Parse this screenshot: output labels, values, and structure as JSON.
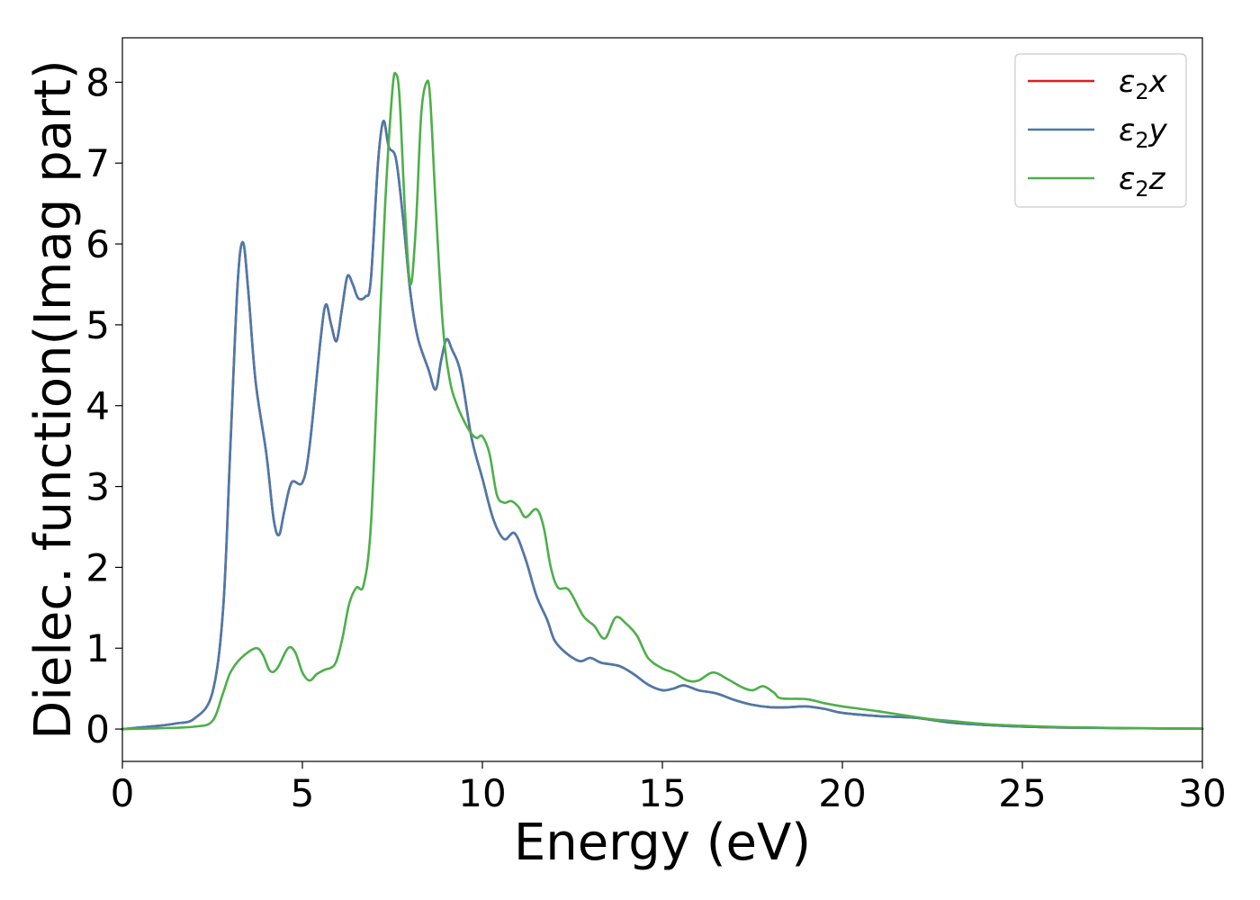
{
  "chart_data": {
    "type": "line",
    "xlabel": "Energy (eV)",
    "ylabel": "Dielec. function(Imag part)",
    "xlim": [
      0,
      30
    ],
    "ylim": [
      -0.4,
      8.55
    ],
    "xticks": [
      0,
      5,
      10,
      15,
      20,
      25,
      30
    ],
    "yticks": [
      0,
      1,
      2,
      3,
      4,
      5,
      6,
      7,
      8
    ],
    "grid": false,
    "legend_position": "top-right",
    "series": [
      {
        "name": "ε2x",
        "legend": {
          "base": "ε",
          "sub": "2",
          "suffix": "x"
        },
        "color": "#e41a1c",
        "points": [
          [
            0,
            0
          ],
          [
            1,
            0.04
          ],
          [
            1.5,
            0.07
          ],
          [
            2,
            0.13
          ],
          [
            2.5,
            0.45
          ],
          [
            2.8,
            1.5
          ],
          [
            3.0,
            3.5
          ],
          [
            3.2,
            5.5
          ],
          [
            3.35,
            6.02
          ],
          [
            3.5,
            5.4
          ],
          [
            3.7,
            4.3
          ],
          [
            4.0,
            3.4
          ],
          [
            4.2,
            2.6
          ],
          [
            4.35,
            2.4
          ],
          [
            4.5,
            2.7
          ],
          [
            4.7,
            3.05
          ],
          [
            5.0,
            3.05
          ],
          [
            5.2,
            3.5
          ],
          [
            5.5,
            4.8
          ],
          [
            5.65,
            5.25
          ],
          [
            5.8,
            5.0
          ],
          [
            5.95,
            4.8
          ],
          [
            6.1,
            5.2
          ],
          [
            6.25,
            5.6
          ],
          [
            6.4,
            5.5
          ],
          [
            6.55,
            5.33
          ],
          [
            6.75,
            5.35
          ],
          [
            6.9,
            5.55
          ],
          [
            7.1,
            7.0
          ],
          [
            7.25,
            7.52
          ],
          [
            7.4,
            7.2
          ],
          [
            7.6,
            7.05
          ],
          [
            7.8,
            6.3
          ],
          [
            8.0,
            5.4
          ],
          [
            8.2,
            4.85
          ],
          [
            8.5,
            4.45
          ],
          [
            8.7,
            4.2
          ],
          [
            8.85,
            4.55
          ],
          [
            9.0,
            4.82
          ],
          [
            9.15,
            4.7
          ],
          [
            9.4,
            4.4
          ],
          [
            9.7,
            3.6
          ],
          [
            10.0,
            3.1
          ],
          [
            10.3,
            2.6
          ],
          [
            10.6,
            2.35
          ],
          [
            10.9,
            2.42
          ],
          [
            11.2,
            2.1
          ],
          [
            11.5,
            1.65
          ],
          [
            11.8,
            1.35
          ],
          [
            12.0,
            1.1
          ],
          [
            12.3,
            0.95
          ],
          [
            12.7,
            0.84
          ],
          [
            13.0,
            0.88
          ],
          [
            13.3,
            0.82
          ],
          [
            13.8,
            0.78
          ],
          [
            14.2,
            0.68
          ],
          [
            14.6,
            0.55
          ],
          [
            15.0,
            0.48
          ],
          [
            15.3,
            0.5
          ],
          [
            15.6,
            0.54
          ],
          [
            16.0,
            0.48
          ],
          [
            16.5,
            0.44
          ],
          [
            17.0,
            0.36
          ],
          [
            17.5,
            0.3
          ],
          [
            18.0,
            0.27
          ],
          [
            18.5,
            0.27
          ],
          [
            19.0,
            0.28
          ],
          [
            19.5,
            0.25
          ],
          [
            20.0,
            0.2
          ],
          [
            21.0,
            0.16
          ],
          [
            22.0,
            0.14
          ],
          [
            23.0,
            0.08
          ],
          [
            24.0,
            0.05
          ],
          [
            25.0,
            0.03
          ],
          [
            26.0,
            0.02
          ],
          [
            27.0,
            0.015
          ],
          [
            28.0,
            0.01
          ],
          [
            30.0,
            0.005
          ]
        ]
      },
      {
        "name": "ε2y",
        "legend": {
          "base": "ε",
          "sub": "2",
          "suffix": "y"
        },
        "color": "#4a7aac",
        "points": [
          [
            0,
            0
          ],
          [
            1,
            0.04
          ],
          [
            1.5,
            0.07
          ],
          [
            2,
            0.13
          ],
          [
            2.5,
            0.45
          ],
          [
            2.8,
            1.5
          ],
          [
            3.0,
            3.5
          ],
          [
            3.2,
            5.5
          ],
          [
            3.35,
            6.02
          ],
          [
            3.5,
            5.4
          ],
          [
            3.7,
            4.3
          ],
          [
            4.0,
            3.4
          ],
          [
            4.2,
            2.6
          ],
          [
            4.35,
            2.4
          ],
          [
            4.5,
            2.7
          ],
          [
            4.7,
            3.05
          ],
          [
            5.0,
            3.05
          ],
          [
            5.2,
            3.5
          ],
          [
            5.5,
            4.8
          ],
          [
            5.65,
            5.25
          ],
          [
            5.8,
            5.0
          ],
          [
            5.95,
            4.8
          ],
          [
            6.1,
            5.2
          ],
          [
            6.25,
            5.6
          ],
          [
            6.4,
            5.5
          ],
          [
            6.55,
            5.33
          ],
          [
            6.75,
            5.35
          ],
          [
            6.9,
            5.55
          ],
          [
            7.1,
            7.0
          ],
          [
            7.25,
            7.52
          ],
          [
            7.4,
            7.2
          ],
          [
            7.6,
            7.05
          ],
          [
            7.8,
            6.3
          ],
          [
            8.0,
            5.4
          ],
          [
            8.2,
            4.85
          ],
          [
            8.5,
            4.45
          ],
          [
            8.7,
            4.2
          ],
          [
            8.85,
            4.55
          ],
          [
            9.0,
            4.82
          ],
          [
            9.15,
            4.7
          ],
          [
            9.4,
            4.4
          ],
          [
            9.7,
            3.6
          ],
          [
            10.0,
            3.1
          ],
          [
            10.3,
            2.6
          ],
          [
            10.6,
            2.35
          ],
          [
            10.9,
            2.42
          ],
          [
            11.2,
            2.1
          ],
          [
            11.5,
            1.65
          ],
          [
            11.8,
            1.35
          ],
          [
            12.0,
            1.1
          ],
          [
            12.3,
            0.95
          ],
          [
            12.7,
            0.84
          ],
          [
            13.0,
            0.88
          ],
          [
            13.3,
            0.82
          ],
          [
            13.8,
            0.78
          ],
          [
            14.2,
            0.68
          ],
          [
            14.6,
            0.55
          ],
          [
            15.0,
            0.48
          ],
          [
            15.3,
            0.5
          ],
          [
            15.6,
            0.54
          ],
          [
            16.0,
            0.48
          ],
          [
            16.5,
            0.44
          ],
          [
            17.0,
            0.36
          ],
          [
            17.5,
            0.3
          ],
          [
            18.0,
            0.27
          ],
          [
            18.5,
            0.27
          ],
          [
            19.0,
            0.28
          ],
          [
            19.5,
            0.25
          ],
          [
            20.0,
            0.2
          ],
          [
            21.0,
            0.16
          ],
          [
            22.0,
            0.14
          ],
          [
            23.0,
            0.08
          ],
          [
            24.0,
            0.05
          ],
          [
            25.0,
            0.03
          ],
          [
            26.0,
            0.02
          ],
          [
            27.0,
            0.015
          ],
          [
            28.0,
            0.01
          ],
          [
            30.0,
            0.005
          ]
        ]
      },
      {
        "name": "ε2z",
        "legend": {
          "base": "ε",
          "sub": "2",
          "suffix": "z"
        },
        "color": "#4daf4a",
        "points": [
          [
            0,
            0
          ],
          [
            1,
            0.01
          ],
          [
            2,
            0.03
          ],
          [
            2.5,
            0.1
          ],
          [
            2.8,
            0.45
          ],
          [
            3.0,
            0.7
          ],
          [
            3.3,
            0.88
          ],
          [
            3.7,
            1.0
          ],
          [
            3.9,
            0.92
          ],
          [
            4.1,
            0.72
          ],
          [
            4.3,
            0.75
          ],
          [
            4.6,
            1.0
          ],
          [
            4.8,
            0.95
          ],
          [
            5.0,
            0.7
          ],
          [
            5.2,
            0.6
          ],
          [
            5.4,
            0.68
          ],
          [
            5.6,
            0.73
          ],
          [
            5.9,
            0.8
          ],
          [
            6.1,
            1.1
          ],
          [
            6.3,
            1.55
          ],
          [
            6.5,
            1.75
          ],
          [
            6.7,
            1.78
          ],
          [
            6.9,
            2.5
          ],
          [
            7.1,
            4.5
          ],
          [
            7.3,
            6.5
          ],
          [
            7.5,
            7.9
          ],
          [
            7.6,
            8.1
          ],
          [
            7.7,
            7.8
          ],
          [
            7.85,
            6.4
          ],
          [
            8.0,
            5.5
          ],
          [
            8.15,
            6.2
          ],
          [
            8.3,
            7.6
          ],
          [
            8.45,
            8.0
          ],
          [
            8.55,
            7.8
          ],
          [
            8.7,
            6.5
          ],
          [
            8.9,
            5.0
          ],
          [
            9.1,
            4.3
          ],
          [
            9.3,
            4.0
          ],
          [
            9.5,
            3.8
          ],
          [
            9.7,
            3.65
          ],
          [
            9.85,
            3.6
          ],
          [
            10.0,
            3.62
          ],
          [
            10.2,
            3.4
          ],
          [
            10.4,
            2.9
          ],
          [
            10.6,
            2.8
          ],
          [
            10.8,
            2.82
          ],
          [
            11.0,
            2.75
          ],
          [
            11.2,
            2.62
          ],
          [
            11.5,
            2.72
          ],
          [
            11.7,
            2.5
          ],
          [
            11.9,
            2.0
          ],
          [
            12.1,
            1.75
          ],
          [
            12.4,
            1.72
          ],
          [
            12.8,
            1.4
          ],
          [
            13.1,
            1.28
          ],
          [
            13.4,
            1.12
          ],
          [
            13.7,
            1.38
          ],
          [
            14.0,
            1.3
          ],
          [
            14.3,
            1.15
          ],
          [
            14.6,
            0.88
          ],
          [
            15.0,
            0.75
          ],
          [
            15.3,
            0.7
          ],
          [
            15.7,
            0.6
          ],
          [
            16.0,
            0.6
          ],
          [
            16.4,
            0.7
          ],
          [
            16.8,
            0.62
          ],
          [
            17.2,
            0.52
          ],
          [
            17.5,
            0.48
          ],
          [
            17.8,
            0.53
          ],
          [
            18.1,
            0.45
          ],
          [
            18.3,
            0.38
          ],
          [
            19.0,
            0.37
          ],
          [
            19.5,
            0.32
          ],
          [
            20.0,
            0.28
          ],
          [
            20.5,
            0.25
          ],
          [
            21.0,
            0.22
          ],
          [
            22.0,
            0.15
          ],
          [
            22.5,
            0.12
          ],
          [
            23.0,
            0.1
          ],
          [
            24.0,
            0.06
          ],
          [
            25.0,
            0.04
          ],
          [
            26.0,
            0.025
          ],
          [
            27.0,
            0.018
          ],
          [
            28.0,
            0.012
          ],
          [
            30.0,
            0.006
          ]
        ]
      }
    ]
  }
}
